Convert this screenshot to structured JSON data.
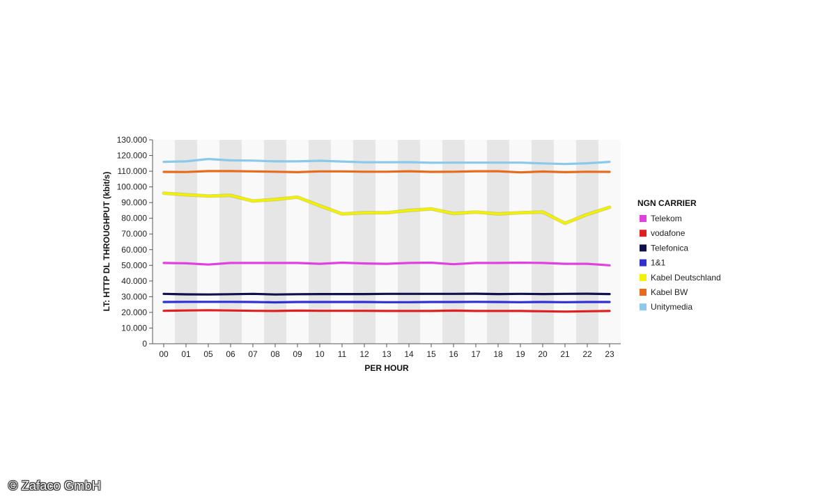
{
  "chart_data": {
    "type": "line",
    "xlabel": "PER HOUR",
    "ylabel": "LT: HTTP DL THROUGHPUT (kbit/s)",
    "categories": [
      "00",
      "01",
      "05",
      "06",
      "07",
      "08",
      "09",
      "10",
      "11",
      "12",
      "13",
      "14",
      "15",
      "16",
      "17",
      "18",
      "19",
      "20",
      "21",
      "22",
      "23"
    ],
    "ylim": [
      0,
      130000
    ],
    "yticks": [
      {
        "value": 0,
        "label": "0"
      },
      {
        "value": 10000,
        "label": "10.000"
      },
      {
        "value": 20000,
        "label": "20.000"
      },
      {
        "value": 30000,
        "label": "30.000"
      },
      {
        "value": 40000,
        "label": "40.000"
      },
      {
        "value": 50000,
        "label": "50.000"
      },
      {
        "value": 60000,
        "label": "60.000"
      },
      {
        "value": 70000,
        "label": "70.000"
      },
      {
        "value": 80000,
        "label": "80.000"
      },
      {
        "value": 90000,
        "label": "90.000"
      },
      {
        "value": 100000,
        "label": "100.000"
      },
      {
        "value": 110000,
        "label": "110.000"
      },
      {
        "value": 120000,
        "label": "120.000"
      },
      {
        "value": 130000,
        "label": "130.000"
      }
    ],
    "grid": "alternating vertical bands",
    "legend_title": "NGN CARRIER",
    "legend_position": "right",
    "series": [
      {
        "name": "Telekom",
        "color": "#e040e0",
        "values": [
          51500,
          51300,
          50500,
          51500,
          51500,
          51500,
          51500,
          51000,
          51700,
          51200,
          51000,
          51500,
          51700,
          50700,
          51500,
          51500,
          51700,
          51500,
          51000,
          51000,
          50000
        ]
      },
      {
        "name": "vodafone",
        "color": "#e02020",
        "values": [
          21000,
          21200,
          21400,
          21200,
          21000,
          20900,
          21100,
          21000,
          21000,
          21000,
          20900,
          20900,
          20900,
          21100,
          20900,
          20900,
          20900,
          20700,
          20500,
          20700,
          20900
        ]
      },
      {
        "name": "Telefonica",
        "color": "#10104a",
        "values": [
          31800,
          31500,
          31400,
          31600,
          31800,
          31400,
          31600,
          31700,
          31700,
          31700,
          31800,
          31800,
          31800,
          31800,
          31900,
          31700,
          31800,
          31700,
          31800,
          31900,
          31700
        ]
      },
      {
        "name": "1&1",
        "color": "#3030d0",
        "values": [
          26600,
          26700,
          26700,
          26700,
          26600,
          26400,
          26600,
          26600,
          26600,
          26600,
          26500,
          26500,
          26600,
          26600,
          26700,
          26600,
          26500,
          26600,
          26500,
          26600,
          26600
        ]
      },
      {
        "name": "Kabel Deutschland",
        "color": "#f2f200",
        "values": [
          96000,
          95000,
          94200,
          94600,
          91000,
          92000,
          93500,
          88000,
          82800,
          83500,
          83500,
          85000,
          86000,
          83000,
          84000,
          82800,
          83500,
          84000,
          76800,
          82500,
          87000
        ]
      },
      {
        "name": "Kabel BW",
        "color": "#e86a1c",
        "values": [
          109600,
          109500,
          110100,
          110100,
          109900,
          109700,
          109400,
          109900,
          109900,
          109700,
          109700,
          110000,
          109600,
          109700,
          110000,
          110000,
          109300,
          109800,
          109400,
          109700,
          109600
        ]
      },
      {
        "name": "Unitymedia",
        "color": "#8cc8ea",
        "values": [
          116000,
          116300,
          117800,
          116900,
          116800,
          116300,
          116300,
          116700,
          116200,
          115700,
          115700,
          115800,
          115400,
          115500,
          115500,
          115500,
          115500,
          115000,
          114600,
          115100,
          116000
        ]
      }
    ]
  },
  "watermark": {
    "text": "© Zafaco GmbH"
  }
}
